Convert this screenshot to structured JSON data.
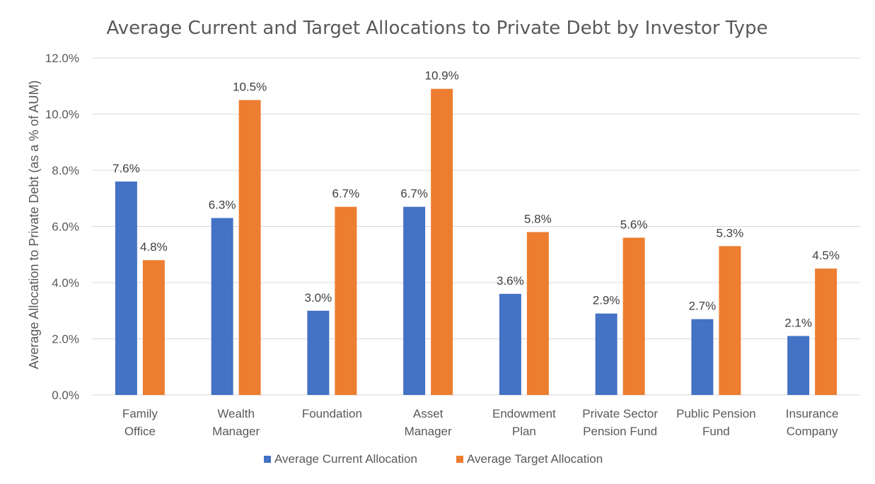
{
  "chart_data": {
    "type": "bar",
    "title": "Average Current and Target Allocations to Private Debt by Investor Type",
    "xlabel": "",
    "ylabel": "Average Allocation to Private Debt (as a % of AUM)",
    "ylim": [
      0,
      12
    ],
    "yticks": [
      "0.0%",
      "2.0%",
      "4.0%",
      "6.0%",
      "8.0%",
      "10.0%",
      "12.0%"
    ],
    "grid": true,
    "legend_position": "bottom",
    "categories": [
      [
        "Family",
        "Office"
      ],
      [
        "Wealth",
        "Manager"
      ],
      [
        "Foundation"
      ],
      [
        "Asset",
        "Manager"
      ],
      [
        "Endowment",
        "Plan"
      ],
      [
        "Private Sector",
        "Pension Fund"
      ],
      [
        "Public Pension",
        "Fund"
      ],
      [
        "Insurance",
        "Company"
      ]
    ],
    "series": [
      {
        "name": "Average Current Allocation",
        "color": "#4472C4",
        "values": [
          7.6,
          6.3,
          3.0,
          6.7,
          3.6,
          2.9,
          2.7,
          2.1
        ],
        "labels": [
          "7.6%",
          "6.3%",
          "3.0%",
          "6.7%",
          "3.6%",
          "2.9%",
          "2.7%",
          "2.1%"
        ]
      },
      {
        "name": "Average Target Allocation",
        "color": "#ED7D31",
        "values": [
          4.8,
          10.5,
          6.7,
          10.9,
          5.8,
          5.6,
          5.3,
          4.5
        ],
        "labels": [
          "4.8%",
          "10.5%",
          "6.7%",
          "10.9%",
          "5.8%",
          "5.6%",
          "5.3%",
          "4.5%"
        ]
      }
    ]
  }
}
